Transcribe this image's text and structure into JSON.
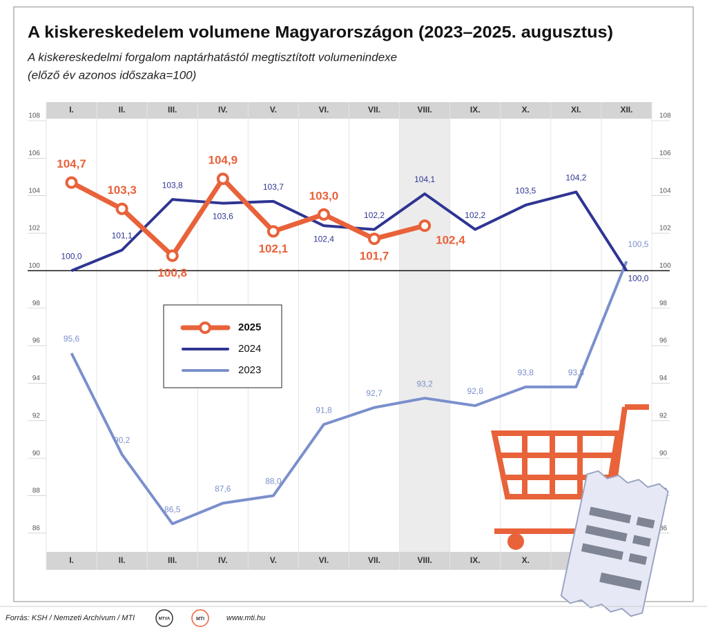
{
  "chart_data": {
    "type": "line",
    "title": "A kiskereskedelem volumene Magyarországon (2023–2025. augusztus)",
    "subtitle": [
      "A kiskereskedelmi forgalom naptárhatástól megtisztított volumenindexe",
      "(előző év azonos időszaka=100)"
    ],
    "categories": [
      "I.",
      "II.",
      "III.",
      "IV.",
      "V.",
      "VI.",
      "VII.",
      "VIII.",
      "IX.",
      "X.",
      "XI.",
      "XII."
    ],
    "series": [
      {
        "name": "2025",
        "color": "#e8623a",
        "values": [
          104.7,
          103.3,
          100.8,
          104.9,
          102.1,
          103.0,
          101.7,
          102.4,
          null,
          null,
          null,
          null
        ],
        "value_labels": [
          "104,7",
          "103,3",
          "100,8",
          "104,9",
          "102,1",
          "103,0",
          "101,7",
          "102,4",
          null,
          null,
          null,
          null
        ]
      },
      {
        "name": "2024",
        "color": "#2e3592",
        "values": [
          100.0,
          101.1,
          103.8,
          103.6,
          103.7,
          102.4,
          102.2,
          104.1,
          102.2,
          103.5,
          104.2,
          100.0
        ],
        "value_labels": [
          "100,0",
          "101,1",
          "103,8",
          "103,6",
          "103,7",
          "102,4",
          "102,2",
          "104,1",
          "102,2",
          "103,5",
          "104,2",
          "100,0"
        ]
      },
      {
        "name": "2023",
        "color": "#7b8fcc",
        "values": [
          95.6,
          90.2,
          86.5,
          87.6,
          88.0,
          91.8,
          92.7,
          93.2,
          92.8,
          93.8,
          93.8,
          100.5
        ],
        "value_labels": [
          "95,6",
          "90,2",
          "86,5",
          "87,6",
          "88,0",
          "91,8",
          "92,7",
          "93,2",
          "92,8",
          "93,8",
          "93,8",
          "100,5"
        ]
      }
    ],
    "ylim": [
      85,
      108
    ],
    "yticks": [
      86,
      88,
      90,
      92,
      94,
      96,
      98,
      100,
      102,
      104,
      106,
      108
    ],
    "reference_line": 100,
    "highlight": "VIII.",
    "source": "Forrás: KSH / Nemzeti Archívum / MTI",
    "logos": [
      "MTVA",
      "MTI"
    ],
    "url": "www.mti.hu"
  }
}
